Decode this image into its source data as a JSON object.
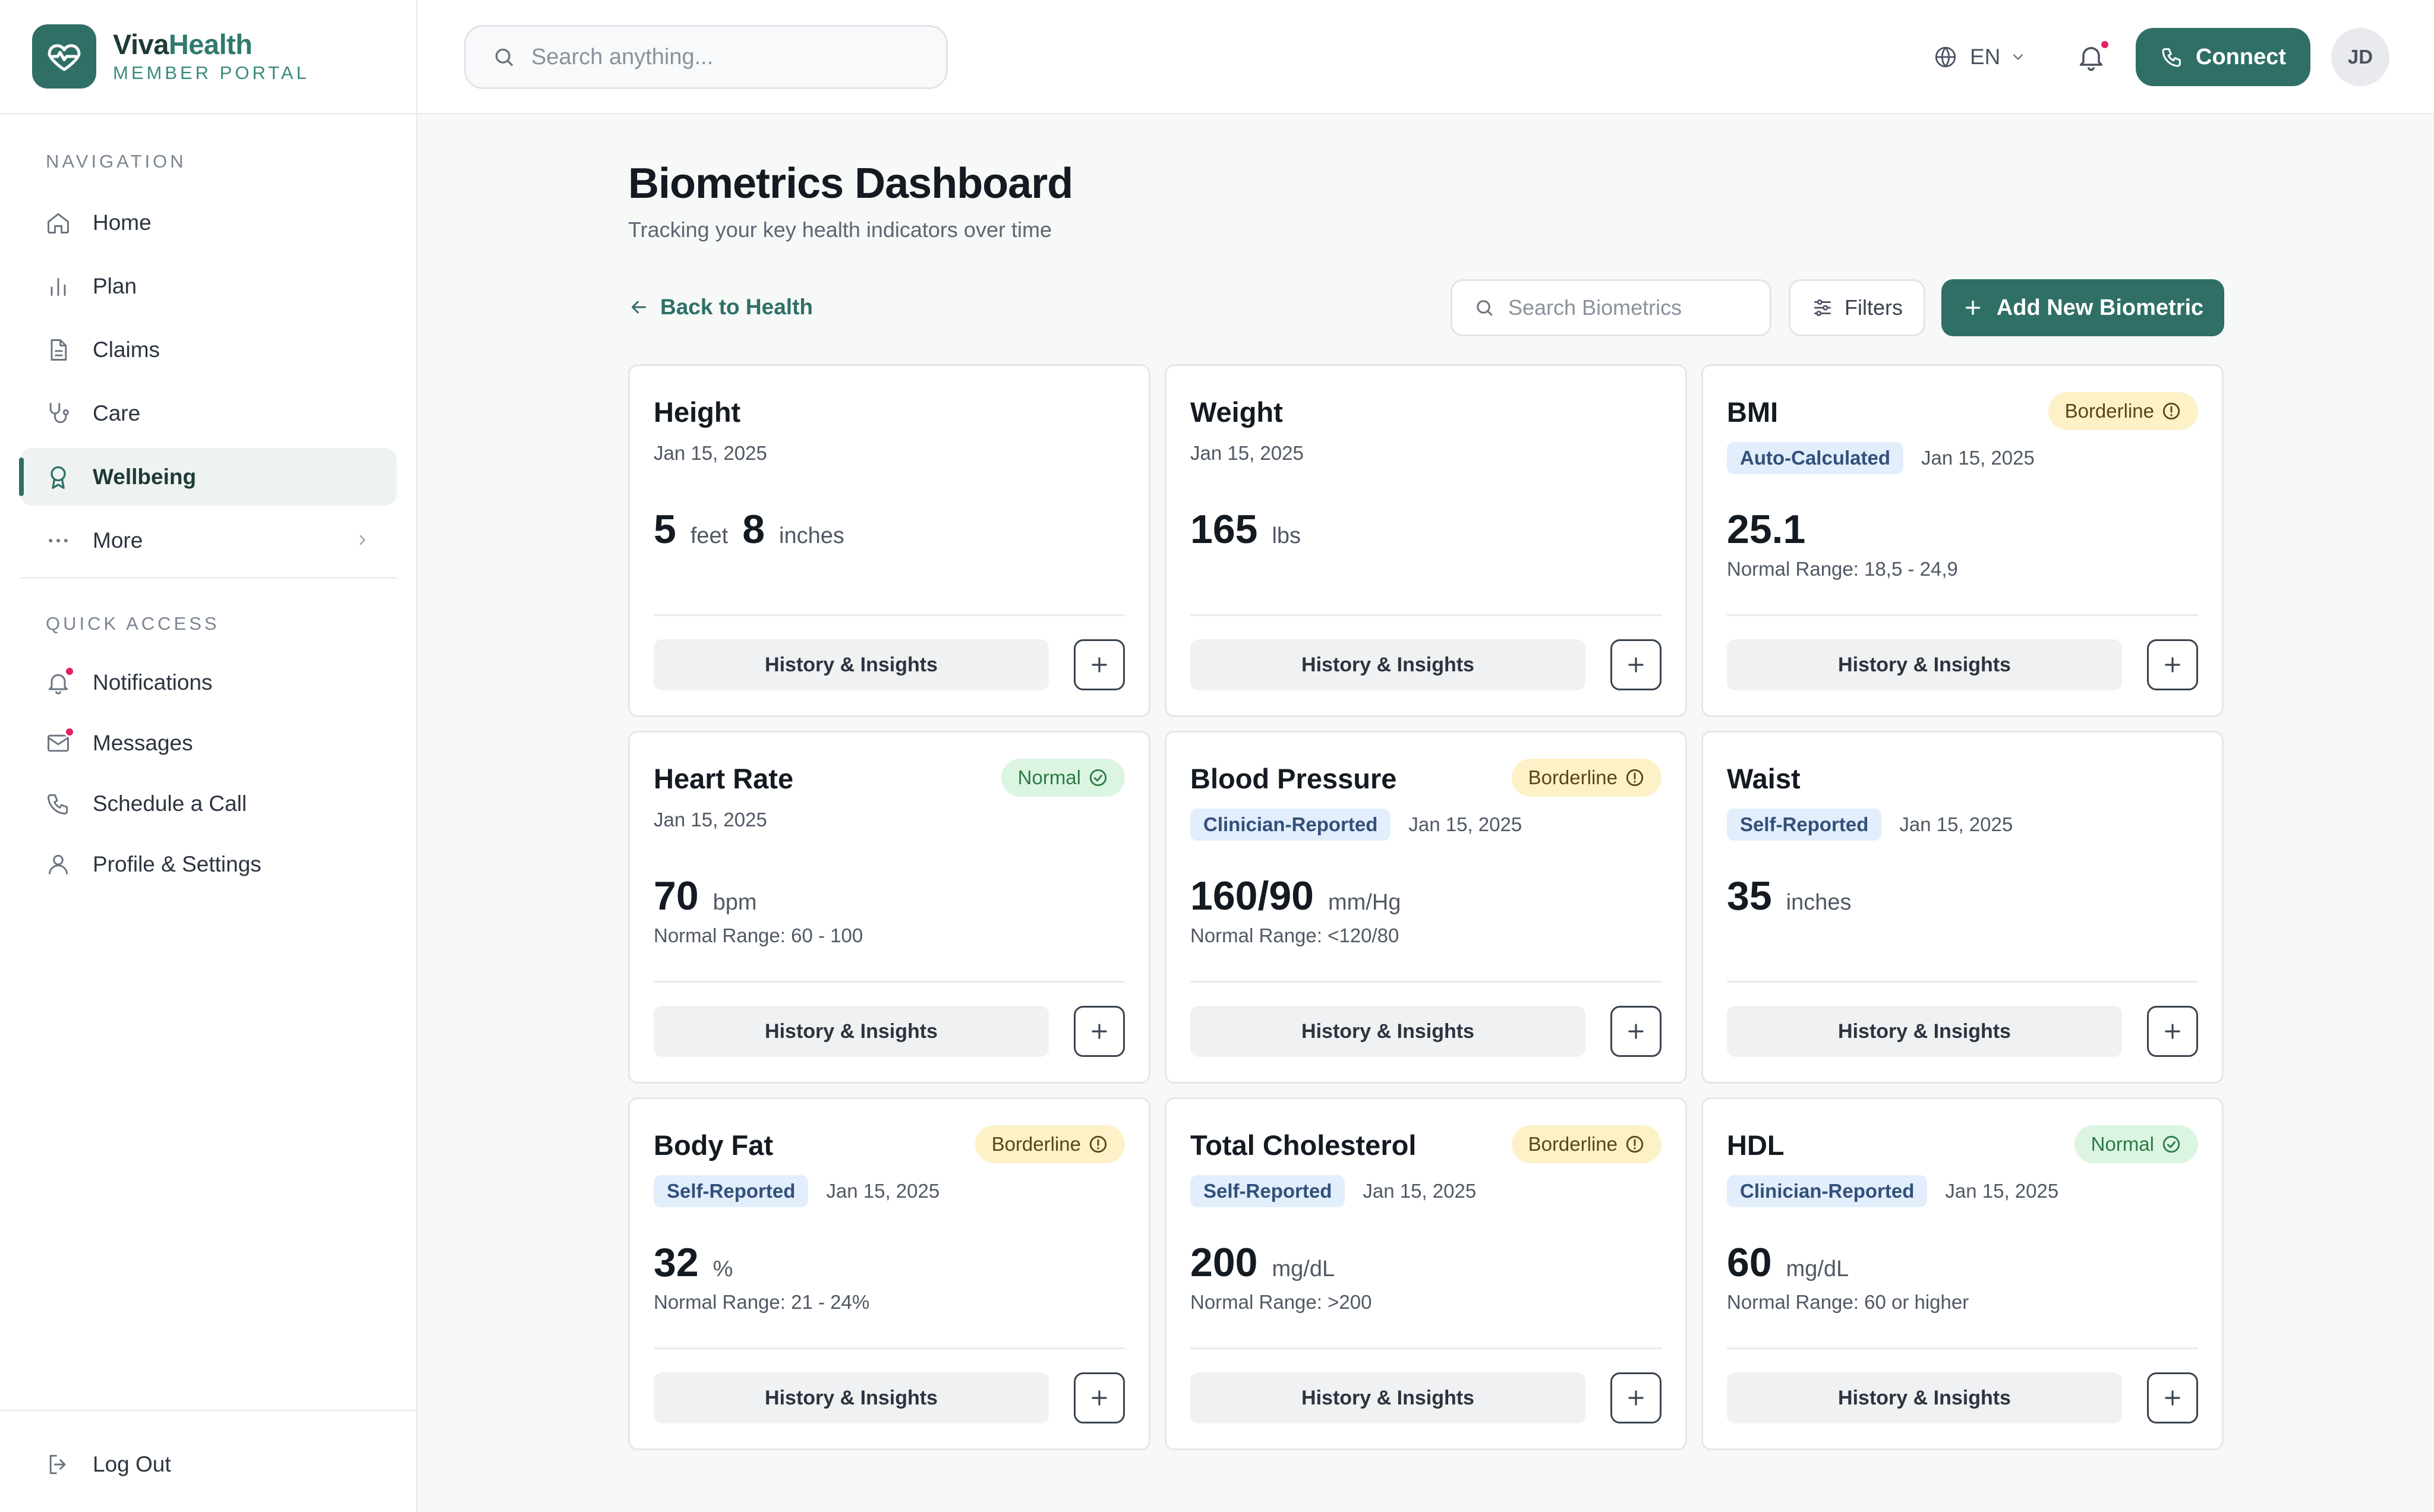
{
  "brand": {
    "name_part1": "Viva",
    "name_part2": "Health",
    "subtitle": "MEMBER PORTAL"
  },
  "sidebar": {
    "nav_label": "NAVIGATION",
    "nav_items": [
      {
        "label": "Home",
        "icon": "home-icon"
      },
      {
        "label": "Plan",
        "icon": "bar-chart-icon"
      },
      {
        "label": "Claims",
        "icon": "document-icon"
      },
      {
        "label": "Care",
        "icon": "stethoscope-icon"
      },
      {
        "label": "Wellbeing",
        "icon": "ribbon-icon",
        "active": true
      },
      {
        "label": "More",
        "icon": "more-icon"
      }
    ],
    "quick_label": "QUICK ACCESS",
    "quick_items": [
      {
        "label": "Notifications",
        "icon": "bell-icon",
        "unread": true
      },
      {
        "label": "Messages",
        "icon": "mail-icon",
        "unread": true
      },
      {
        "label": "Schedule a Call",
        "icon": "phone-icon"
      },
      {
        "label": "Profile & Settings",
        "icon": "user-icon"
      }
    ],
    "logout": "Log Out"
  },
  "topbar": {
    "search_placeholder": "Search anything...",
    "language": "EN",
    "connect_label": "Connect",
    "avatar_initials": "JD"
  },
  "main": {
    "title": "Biometrics Dashboard",
    "subtitle": "Tracking your key health indicators over time",
    "back_label": "Back to Health",
    "search_placeholder": "Search Biometrics",
    "filters_label": "Filters",
    "add_label": "Add New Biometric"
  },
  "cards": [
    {
      "title": "Height",
      "date": "Jan 15, 2025",
      "value1": "5",
      "unit1": "feet",
      "value2": "8",
      "unit2": "inches",
      "history": "History & Insights"
    },
    {
      "title": "Weight",
      "date": "Jan 15, 2025",
      "value1": "165",
      "unit1": "lbs",
      "history": "History & Insights"
    },
    {
      "title": "BMI",
      "badge": "Borderline",
      "status": "borderline",
      "tag": "Auto-Calculated",
      "date": "Jan 15, 2025",
      "value1": "25.1",
      "range": "Normal Range: 18,5 - 24,9",
      "history": "History & Insights"
    },
    {
      "title": "Heart Rate",
      "badge": "Normal",
      "status": "normal",
      "date": "Jan 15, 2025",
      "value1": "70",
      "unit1": "bpm",
      "range": "Normal Range: 60 - 100",
      "history": "History & Insights"
    },
    {
      "title": "Blood Pressure",
      "badge": "Borderline",
      "status": "borderline",
      "tag": "Clinician-Reported",
      "date": "Jan 15, 2025",
      "value1": "160/90",
      "unit1": "mm/Hg",
      "range": "Normal Range: <120/80",
      "history": "History & Insights"
    },
    {
      "title": "Waist",
      "tag": "Self-Reported",
      "date": "Jan 15, 2025",
      "value1": "35",
      "unit1": "inches",
      "history": "History & Insights"
    },
    {
      "title": "Body Fat",
      "badge": "Borderline",
      "status": "borderline",
      "tag": "Self-Reported",
      "date": "Jan 15, 2025",
      "value1": "32",
      "unit1": "%",
      "range": "Normal Range: 21 - 24%",
      "history": "History & Insights"
    },
    {
      "title": "Total Cholesterol",
      "badge": "Borderline",
      "status": "borderline",
      "tag": "Self-Reported",
      "date": "Jan 15, 2025",
      "value1": "200",
      "unit1": "mg/dL",
      "range": "Normal Range: >200",
      "history": "History & Insights"
    },
    {
      "title": "HDL",
      "badge": "Normal",
      "status": "normal",
      "tag": "Clinician-Reported",
      "date": "Jan 15, 2025",
      "value1": "60",
      "unit1": "mg/dL",
      "range": "Normal Range: 60 or higher",
      "history": "History & Insights"
    }
  ],
  "colors": {
    "brand": "#2f6f66",
    "borderline_bg": "#fdf1c7",
    "normal_bg": "#dcf5e2",
    "tag_bg": "#e3eefc",
    "alert_dot": "#e0245e"
  }
}
